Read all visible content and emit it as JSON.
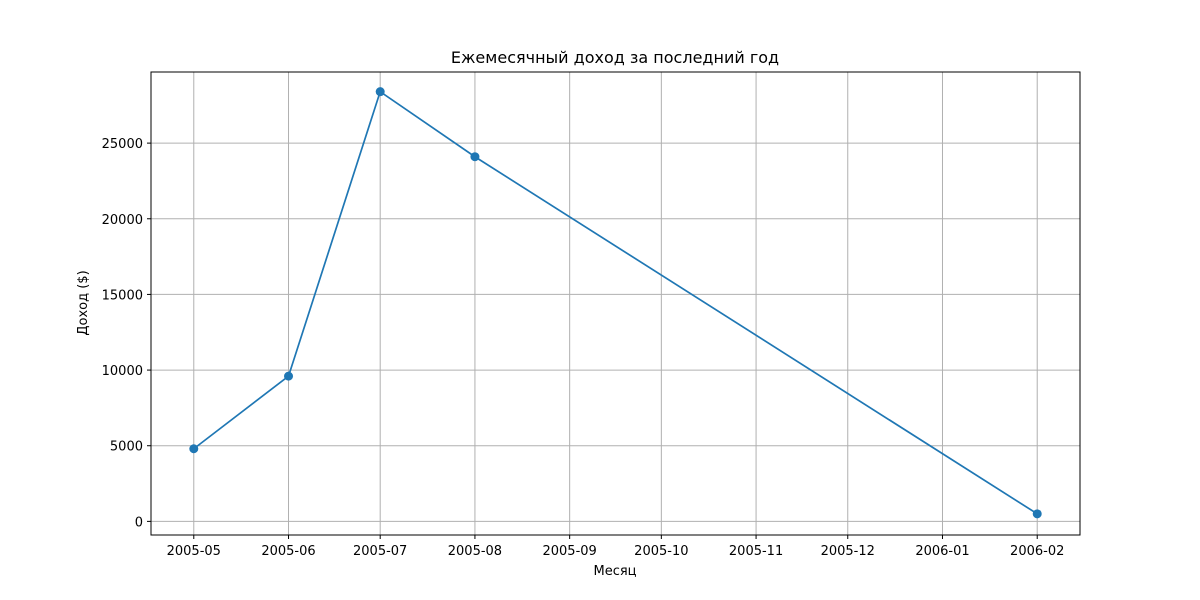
{
  "chart_data": {
    "type": "line",
    "title": "Ежемесячный доход за последний год",
    "xlabel": "Месяц",
    "ylabel": "Доход ($)",
    "x_ticks": [
      "2005-05",
      "2005-06",
      "2005-07",
      "2005-08",
      "2005-09",
      "2005-10",
      "2005-11",
      "2005-12",
      "2006-01",
      "2006-02"
    ],
    "y_ticks": [
      0,
      5000,
      10000,
      15000,
      20000,
      25000
    ],
    "ylim": [
      -900,
      29700
    ],
    "xlim": [
      "2005-04-17",
      "2006-02-15"
    ],
    "grid": true,
    "series": [
      {
        "color": "#1f77b4",
        "marker": "circle",
        "points": [
          {
            "x": "2005-05-01",
            "y": 4800
          },
          {
            "x": "2005-06-01",
            "y": 9600
          },
          {
            "x": "2005-07-01",
            "y": 28400
          },
          {
            "x": "2005-08-01",
            "y": 24100
          },
          {
            "x": "2006-02-01",
            "y": 500
          }
        ]
      }
    ]
  }
}
